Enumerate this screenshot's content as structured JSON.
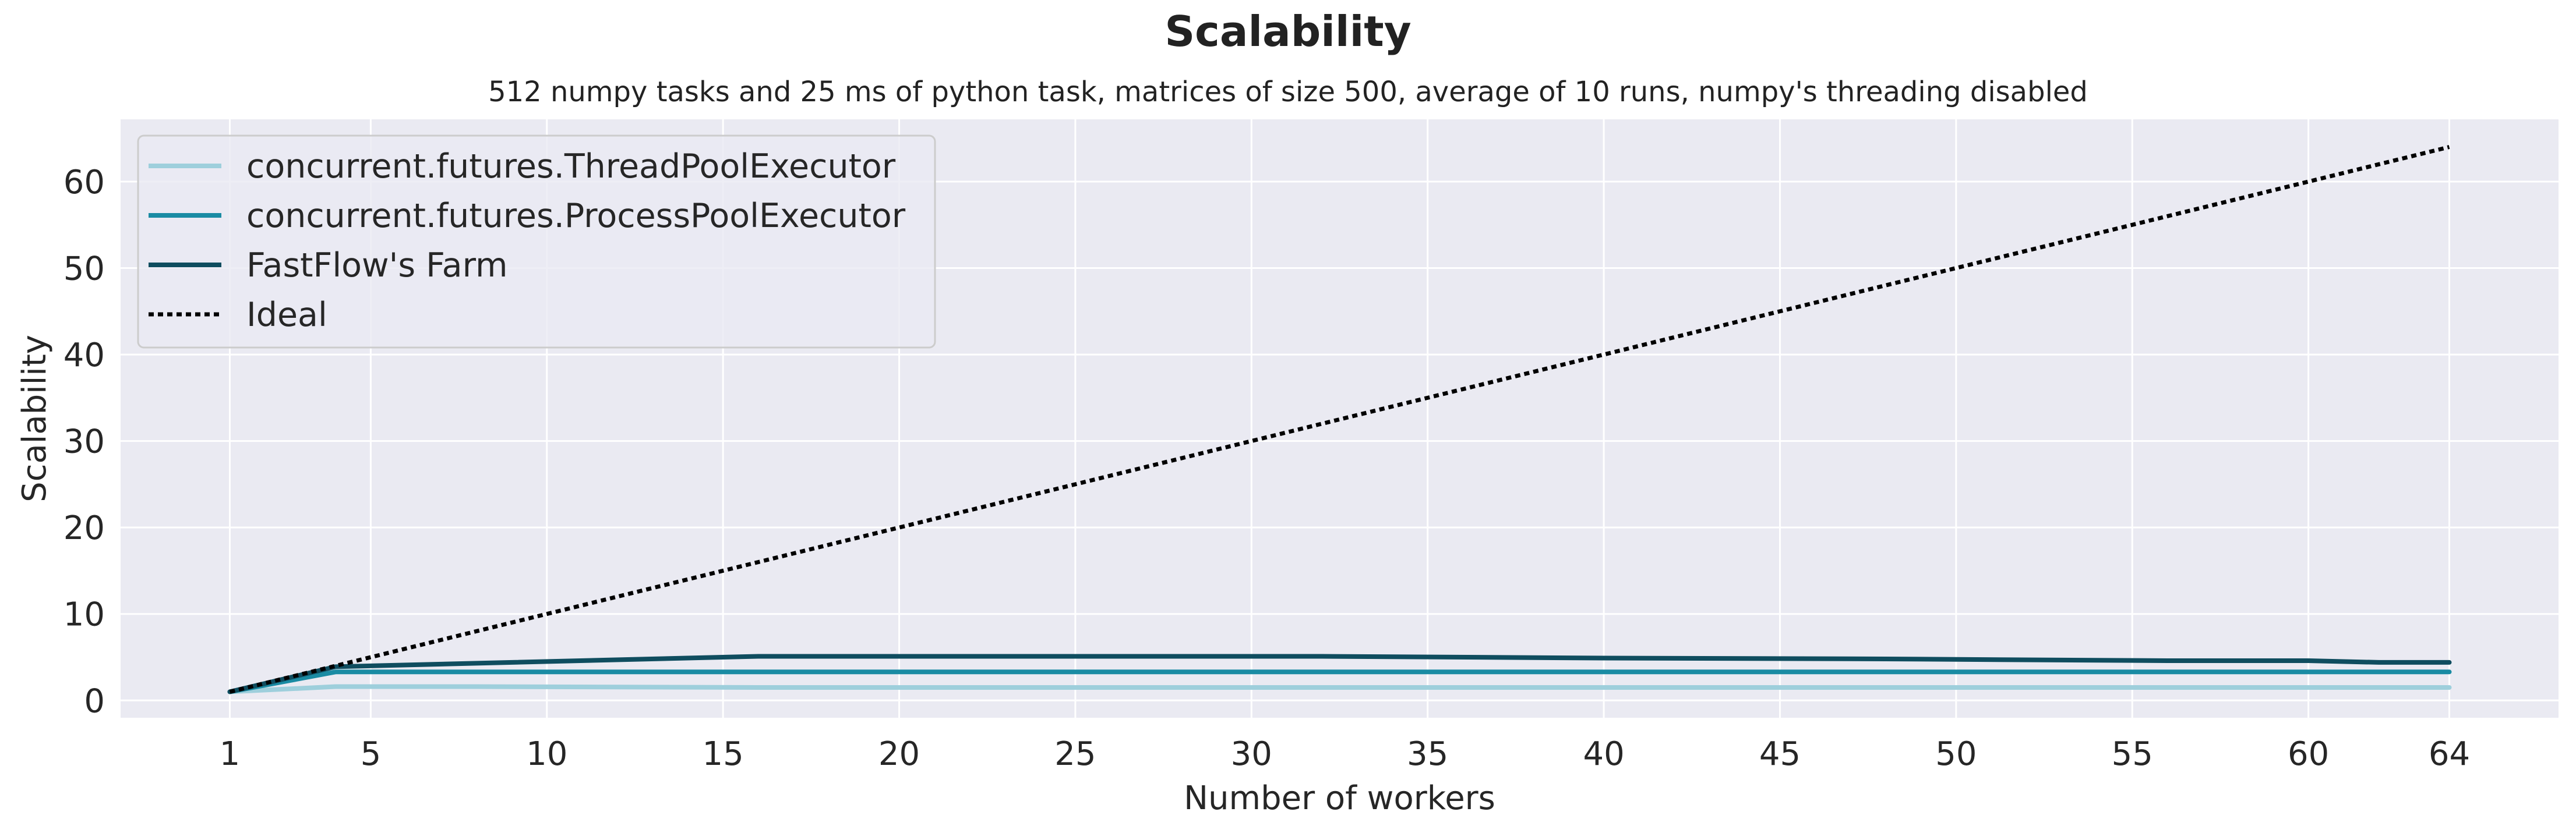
{
  "chart_data": {
    "type": "line",
    "title": "Scalability",
    "subtitle": "512 numpy tasks and 25 ms of python task, matrices of size 500, average of 10 runs, numpy's threading disabled",
    "xlabel": "Number of workers",
    "ylabel": "Scalability",
    "xlim": [
      -2.1,
      67.1
    ],
    "ylim": [
      -2,
      67.2
    ],
    "xticks": [
      1,
      5,
      10,
      15,
      20,
      25,
      30,
      35,
      40,
      45,
      50,
      55,
      60,
      64
    ],
    "yticks": [
      0,
      10,
      20,
      30,
      40,
      50,
      60
    ],
    "grid": true,
    "legend_position": "top-left",
    "x": [
      1,
      4,
      8,
      16,
      24,
      32,
      40,
      48,
      56,
      60,
      62,
      64
    ],
    "series": [
      {
        "name": "concurrent.futures.ThreadPoolExecutor",
        "color": "#9ecfdc",
        "dash": "solid",
        "values": [
          1.0,
          1.6,
          1.6,
          1.5,
          1.5,
          1.5,
          1.5,
          1.5,
          1.5,
          1.5,
          1.5,
          1.5
        ]
      },
      {
        "name": "concurrent.futures.ProcessPoolExecutor",
        "color": "#1a8ba3",
        "dash": "solid",
        "values": [
          1.0,
          3.3,
          3.3,
          3.3,
          3.3,
          3.3,
          3.3,
          3.3,
          3.3,
          3.3,
          3.3,
          3.3
        ]
      },
      {
        "name": "FastFlow's Farm",
        "color": "#0f4d5f",
        "dash": "solid",
        "values": [
          1.0,
          3.9,
          4.3,
          5.1,
          5.1,
          5.1,
          4.9,
          4.8,
          4.6,
          4.6,
          4.4,
          4.4
        ]
      },
      {
        "name": "Ideal",
        "color": "#000000",
        "dash": "dotted",
        "values": [
          1,
          4,
          8,
          16,
          24,
          32,
          40,
          48,
          56,
          60,
          62,
          64
        ]
      }
    ]
  },
  "colors": {
    "plot_background": "#eaeaf2",
    "grid": "#ffffff"
  }
}
